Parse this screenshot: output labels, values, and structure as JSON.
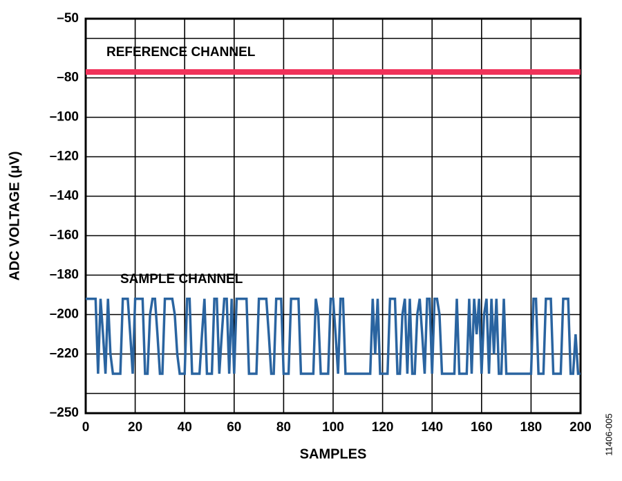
{
  "chart_data": {
    "type": "line",
    "xlabel": "SAMPLES",
    "ylabel": "ADC VOLTAGE (μV)",
    "annotations": [
      "REFERENCE CHANNEL",
      "SAMPLE CHANNEL"
    ],
    "figure_id": "11406-005",
    "xlim": [
      0,
      200
    ],
    "ylim": [
      -250,
      -50
    ],
    "xticks": [
      0,
      20,
      40,
      60,
      80,
      100,
      120,
      140,
      160,
      180,
      200
    ],
    "yticks": [
      {
        "value": -250,
        "label": "–250"
      },
      {
        "value": -220,
        "label": "–220"
      },
      {
        "value": -200,
        "label": "–200"
      },
      {
        "value": -180,
        "label": "–180"
      },
      {
        "value": -160,
        "label": "–160"
      },
      {
        "value": -140,
        "label": "–140"
      },
      {
        "value": -120,
        "label": "–120"
      },
      {
        "value": -100,
        "label": "–100"
      },
      {
        "value": -80,
        "label": "–80"
      },
      {
        "value": -50,
        "label": "–50"
      }
    ],
    "ygrid_minor": [
      -240,
      -60
    ],
    "grid": true,
    "series": [
      {
        "name": "REFERENCE CHANNEL",
        "color": "#f0325a",
        "x": [
          0,
          200
        ],
        "values": [
          -77,
          -77
        ]
      },
      {
        "name": "SAMPLE CHANNEL",
        "color": "#2a64a0",
        "x": [
          0,
          1,
          2,
          3,
          4,
          5,
          6,
          7,
          8,
          9,
          10,
          11,
          12,
          13,
          14,
          15,
          16,
          17,
          18,
          19,
          20,
          21,
          22,
          23,
          24,
          25,
          26,
          27,
          28,
          29,
          30,
          31,
          32,
          33,
          34,
          35,
          36,
          37,
          38,
          39,
          40,
          41,
          42,
          43,
          44,
          45,
          46,
          47,
          48,
          49,
          50,
          51,
          52,
          53,
          54,
          55,
          56,
          57,
          58,
          59,
          60,
          61,
          62,
          63,
          64,
          65,
          66,
          67,
          68,
          69,
          70,
          71,
          72,
          73,
          74,
          75,
          76,
          77,
          78,
          79,
          80,
          81,
          82,
          83,
          84,
          85,
          86,
          87,
          88,
          89,
          90,
          91,
          92,
          93,
          94,
          95,
          96,
          97,
          98,
          99,
          100,
          101,
          102,
          103,
          104,
          105,
          106,
          107,
          108,
          109,
          110,
          111,
          112,
          113,
          114,
          115,
          116,
          117,
          118,
          119,
          120,
          121,
          122,
          123,
          124,
          125,
          126,
          127,
          128,
          129,
          130,
          131,
          132,
          133,
          134,
          135,
          136,
          137,
          138,
          139,
          140,
          141,
          142,
          143,
          144,
          145,
          146,
          147,
          148,
          149,
          150,
          151,
          152,
          153,
          154,
          155,
          156,
          157,
          158,
          159,
          160,
          161,
          162,
          163,
          164,
          165,
          166,
          167,
          168,
          169,
          170,
          171,
          172,
          173,
          174,
          175,
          176,
          177,
          178,
          179,
          180,
          181,
          182,
          183,
          184,
          185,
          186,
          187,
          188,
          189,
          190,
          191,
          192,
          193,
          194,
          195,
          196,
          197,
          198,
          199,
          200
        ],
        "values": [
          -192,
          -192,
          -192,
          -192,
          -192,
          -230,
          -192,
          -210,
          -230,
          -192,
          -220,
          -230,
          -230,
          -230,
          -230,
          -192,
          -192,
          -192,
          -210,
          -230,
          -192,
          -192,
          -192,
          -192,
          -230,
          -230,
          -200,
          -192,
          -192,
          -210,
          -230,
          -230,
          -192,
          -192,
          -192,
          -192,
          -200,
          -220,
          -230,
          -230,
          -230,
          -192,
          -192,
          -230,
          -230,
          -230,
          -230,
          -210,
          -192,
          -230,
          -230,
          -230,
          -192,
          -192,
          -230,
          -210,
          -192,
          -192,
          -230,
          -192,
          -230,
          -192,
          -192,
          -192,
          -192,
          -192,
          -230,
          -230,
          -230,
          -230,
          -192,
          -192,
          -192,
          -192,
          -210,
          -230,
          -230,
          -192,
          -192,
          -192,
          -230,
          -230,
          -230,
          -192,
          -192,
          -192,
          -192,
          -230,
          -230,
          -230,
          -230,
          -230,
          -230,
          -192,
          -200,
          -230,
          -230,
          -230,
          -230,
          -192,
          -192,
          -210,
          -230,
          -192,
          -192,
          -230,
          -230,
          -230,
          -230,
          -230,
          -230,
          -230,
          -230,
          -230,
          -230,
          -230,
          -192,
          -220,
          -192,
          -230,
          -230,
          -230,
          -230,
          -192,
          -192,
          -192,
          -230,
          -230,
          -200,
          -192,
          -230,
          -192,
          -230,
          -230,
          -200,
          -192,
          -210,
          -230,
          -192,
          -192,
          -230,
          -192,
          -192,
          -200,
          -230,
          -230,
          -230,
          -230,
          -230,
          -230,
          -192,
          -230,
          -230,
          -230,
          -230,
          -192,
          -230,
          -192,
          -210,
          -192,
          -230,
          -200,
          -192,
          -230,
          -192,
          -220,
          -192,
          -230,
          -230,
          -192,
          -230,
          -230,
          -230,
          -230,
          -230,
          -230,
          -230,
          -230,
          -230,
          -230,
          -230,
          -192,
          -192,
          -230,
          -230,
          -230,
          -192,
          -192,
          -192,
          -230,
          -230,
          -230,
          -230,
          -192,
          -192,
          -192,
          -230,
          -230,
          -210,
          -230,
          -230
        ]
      }
    ]
  }
}
